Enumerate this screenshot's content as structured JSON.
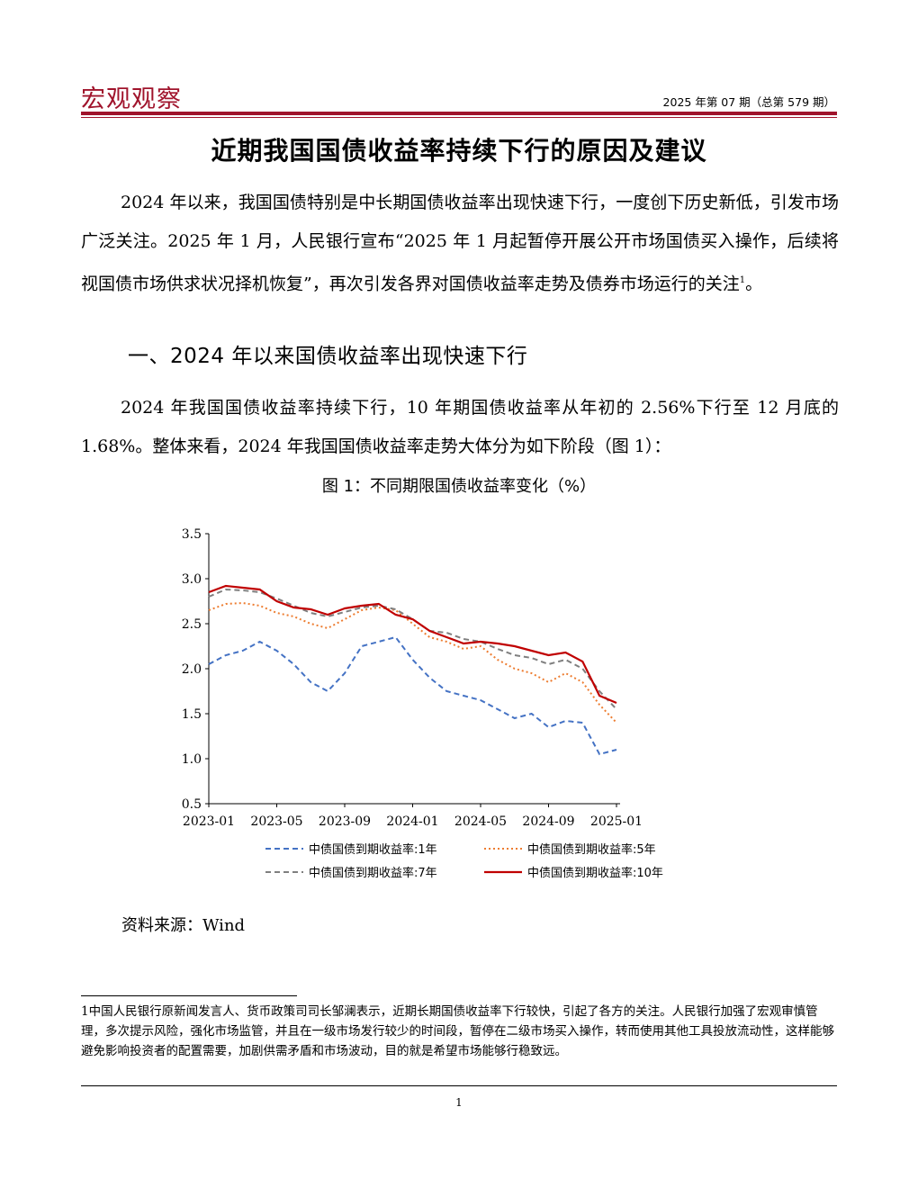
{
  "header": {
    "brand": "宏观观察",
    "issue": "2025 年第 07 期（总第 579 期）",
    "brand_color": "#a0142c"
  },
  "title": "近期我国国债收益率持续下行的原因及建议",
  "intro": {
    "text": "2024 年以来，我国国债特别是中长期国债收益率出现快速下行，一度创下历史新低，引发市场广泛关注。2025 年 1 月，人民银行宣布“2025 年 1 月起暂停开展公开市场国债买入操作，后续将视国债市场供求状况择机恢复”，再次引发各界对国债收益率走势及债券市场运行的关注",
    "footnote_ref": "1",
    "end": "。"
  },
  "section1": {
    "heading": "一、2024 年以来国债收益率出现快速下行",
    "paragraph": "2024 年我国国债收益率持续下行，10 年期国债收益率从年初的 2.56%下行至 12 月底的 1.68%。整体来看，2024 年我国国债收益率走势大体分为如下阶段（图 1）："
  },
  "figure": {
    "title": "图 1：不同期限国债收益率变化（%）",
    "source": "资料来源：Wind"
  },
  "chart_data": {
    "type": "line",
    "title": "",
    "xlabel": "",
    "ylabel": "",
    "x_ticks": [
      "2023-01",
      "2023-05",
      "2023-09",
      "2024-01",
      "2024-05",
      "2024-09",
      "2025-01"
    ],
    "y_ticks": [
      "0.5",
      "1.0",
      "1.5",
      "2.0",
      "2.5",
      "3.0",
      "3.5"
    ],
    "ylim": [
      0.5,
      3.5
    ],
    "xlim": [
      "2023-01",
      "2025-01"
    ],
    "grid": false,
    "legend_position": "bottom",
    "series": [
      {
        "name": "中债国债到期收益率:1年",
        "color": "#4472c4",
        "style": "dashed",
        "points": [
          [
            "2023-01",
            2.05
          ],
          [
            "2023-02",
            2.15
          ],
          [
            "2023-03",
            2.2
          ],
          [
            "2023-04",
            2.3
          ],
          [
            "2023-05",
            2.2
          ],
          [
            "2023-06",
            2.05
          ],
          [
            "2023-07",
            1.85
          ],
          [
            "2023-08",
            1.75
          ],
          [
            "2023-09",
            1.95
          ],
          [
            "2023-10",
            2.25
          ],
          [
            "2023-11",
            2.3
          ],
          [
            "2023-12",
            2.35
          ],
          [
            "2024-01",
            2.1
          ],
          [
            "2024-02",
            1.9
          ],
          [
            "2024-03",
            1.75
          ],
          [
            "2024-04",
            1.7
          ],
          [
            "2024-05",
            1.65
          ],
          [
            "2024-06",
            1.55
          ],
          [
            "2024-07",
            1.45
          ],
          [
            "2024-08",
            1.5
          ],
          [
            "2024-09",
            1.35
          ],
          [
            "2024-10",
            1.42
          ],
          [
            "2024-11",
            1.4
          ],
          [
            "2024-12",
            1.05
          ],
          [
            "2025-01",
            1.1
          ]
        ]
      },
      {
        "name": "中债国债到期收益率:5年",
        "color": "#ed7d31",
        "style": "dotted",
        "points": [
          [
            "2023-01",
            2.65
          ],
          [
            "2023-02",
            2.72
          ],
          [
            "2023-03",
            2.73
          ],
          [
            "2023-04",
            2.7
          ],
          [
            "2023-05",
            2.62
          ],
          [
            "2023-06",
            2.58
          ],
          [
            "2023-07",
            2.5
          ],
          [
            "2023-08",
            2.45
          ],
          [
            "2023-09",
            2.55
          ],
          [
            "2023-10",
            2.65
          ],
          [
            "2023-11",
            2.68
          ],
          [
            "2023-12",
            2.65
          ],
          [
            "2024-01",
            2.5
          ],
          [
            "2024-02",
            2.35
          ],
          [
            "2024-03",
            2.3
          ],
          [
            "2024-04",
            2.22
          ],
          [
            "2024-05",
            2.25
          ],
          [
            "2024-06",
            2.1
          ],
          [
            "2024-07",
            2.0
          ],
          [
            "2024-08",
            1.95
          ],
          [
            "2024-09",
            1.85
          ],
          [
            "2024-10",
            1.95
          ],
          [
            "2024-11",
            1.85
          ],
          [
            "2024-12",
            1.6
          ],
          [
            "2025-01",
            1.4
          ]
        ]
      },
      {
        "name": "中债国债到期收益率:7年",
        "color": "#7f7f7f",
        "style": "dashed",
        "points": [
          [
            "2023-01",
            2.8
          ],
          [
            "2023-02",
            2.88
          ],
          [
            "2023-03",
            2.87
          ],
          [
            "2023-04",
            2.85
          ],
          [
            "2023-05",
            2.78
          ],
          [
            "2023-06",
            2.7
          ],
          [
            "2023-07",
            2.62
          ],
          [
            "2023-08",
            2.58
          ],
          [
            "2023-09",
            2.63
          ],
          [
            "2023-10",
            2.68
          ],
          [
            "2023-11",
            2.7
          ],
          [
            "2023-12",
            2.66
          ],
          [
            "2024-01",
            2.55
          ],
          [
            "2024-02",
            2.42
          ],
          [
            "2024-03",
            2.4
          ],
          [
            "2024-04",
            2.33
          ],
          [
            "2024-05",
            2.3
          ],
          [
            "2024-06",
            2.22
          ],
          [
            "2024-07",
            2.15
          ],
          [
            "2024-08",
            2.12
          ],
          [
            "2024-09",
            2.05
          ],
          [
            "2024-10",
            2.1
          ],
          [
            "2024-11",
            2.0
          ],
          [
            "2024-12",
            1.75
          ],
          [
            "2025-01",
            1.55
          ]
        ]
      },
      {
        "name": "中债国债到期收益率:10年",
        "color": "#c00000",
        "style": "solid",
        "points": [
          [
            "2023-01",
            2.85
          ],
          [
            "2023-02",
            2.92
          ],
          [
            "2023-03",
            2.9
          ],
          [
            "2023-04",
            2.88
          ],
          [
            "2023-05",
            2.75
          ],
          [
            "2023-06",
            2.68
          ],
          [
            "2023-07",
            2.66
          ],
          [
            "2023-08",
            2.6
          ],
          [
            "2023-09",
            2.67
          ],
          [
            "2023-10",
            2.7
          ],
          [
            "2023-11",
            2.72
          ],
          [
            "2023-12",
            2.6
          ],
          [
            "2024-01",
            2.55
          ],
          [
            "2024-02",
            2.42
          ],
          [
            "2024-03",
            2.35
          ],
          [
            "2024-04",
            2.28
          ],
          [
            "2024-05",
            2.3
          ],
          [
            "2024-06",
            2.28
          ],
          [
            "2024-07",
            2.25
          ],
          [
            "2024-08",
            2.2
          ],
          [
            "2024-09",
            2.15
          ],
          [
            "2024-10",
            2.18
          ],
          [
            "2024-11",
            2.08
          ],
          [
            "2024-12",
            1.7
          ],
          [
            "2025-01",
            1.62
          ]
        ]
      }
    ]
  },
  "footnote": {
    "number": "1",
    "text": "中国人民银行原新闻发言人、货币政策司司长邹澜表示，近期长期国债收益率下行较快，引起了各方的关注。人民银行加强了宏观审慎管理，多次提示风险，强化市场监管，并且在一级市场发行较少的时间段，暂停在二级市场买入操作，转而使用其他工具投放流动性，这样能够避免影响投资者的配置需要，加剧供需矛盾和市场波动，目的就是希望市场能够行稳致远。"
  },
  "page_number": "1"
}
